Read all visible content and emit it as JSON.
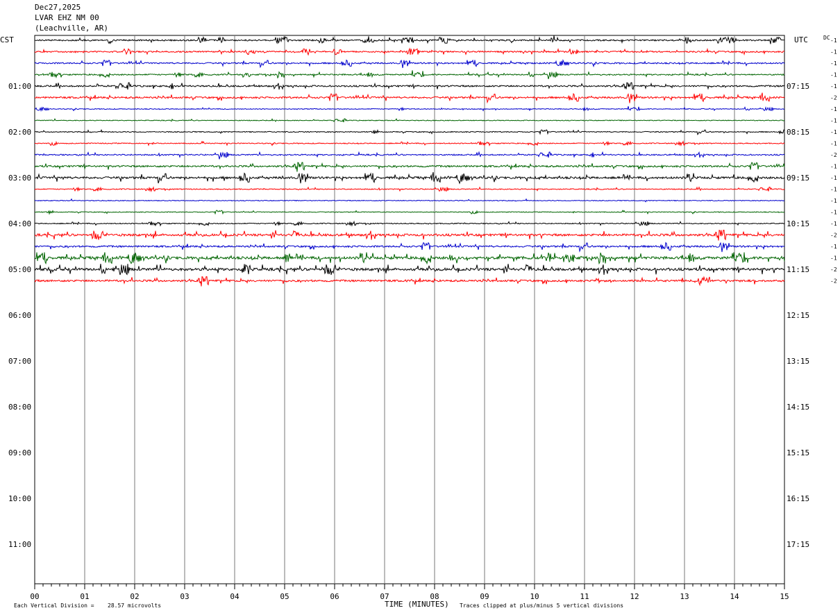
{
  "header": {
    "date": "Dec27,2025",
    "station": "LVAR EHZ NM 00",
    "location": "(Leachville, AR)"
  },
  "footer": {
    "scale_label": "Each Vertical Division =",
    "scale_value": "28.57 microvolts",
    "xlabel": "TIME (MINUTES)",
    "clip_note": "Traces clipped at plus/minus 5 vertical divisions"
  },
  "chart_data": {
    "type": "line",
    "title": "LVAR EHZ NM 00",
    "xlabel": "TIME (MINUTES)",
    "xlim": [
      0,
      15
    ],
    "x_ticks": [
      "00",
      "01",
      "02",
      "03",
      "04",
      "05",
      "06",
      "07",
      "08",
      "09",
      "10",
      "11",
      "12",
      "13",
      "14",
      "15"
    ],
    "left_axis_title": "CST",
    "right_axis_title": "UTC",
    "dc_title": "DC",
    "left_hour_labels": [
      "01:00",
      "02:00",
      "03:00",
      "04:00",
      "05:00",
      "06:00",
      "07:00",
      "08:00",
      "09:00",
      "10:00",
      "11:00"
    ],
    "right_hour_labels": [
      "07:15",
      "08:15",
      "09:15",
      "10:15",
      "11:15",
      "12:15",
      "13:15",
      "14:15",
      "15:15",
      "16:15",
      "17:15"
    ],
    "rows_per_hour": 4,
    "total_rows": 48,
    "trace_colors": [
      "#000000",
      "#ff0000",
      "#0000cc",
      "#006400"
    ],
    "dc_offsets": [
      "-1",
      "-1",
      "-1",
      "-1",
      "-1",
      "-2",
      "-1",
      "-1",
      "-1",
      "-1",
      "-2",
      "-1",
      "-1",
      "-1",
      "-1",
      "-1",
      "-1",
      "-2",
      "-1",
      "-1",
      "-2",
      "-2"
    ],
    "trace_activity": [
      0.9,
      0.9,
      0.9,
      0.8,
      1.0,
      1.1,
      0.5,
      0.5,
      0.6,
      0.6,
      0.8,
      1.1,
      1.3,
      0.6,
      0.5,
      0.5,
      0.6,
      1.4,
      1.1,
      1.6,
      1.6,
      1.2
    ]
  }
}
